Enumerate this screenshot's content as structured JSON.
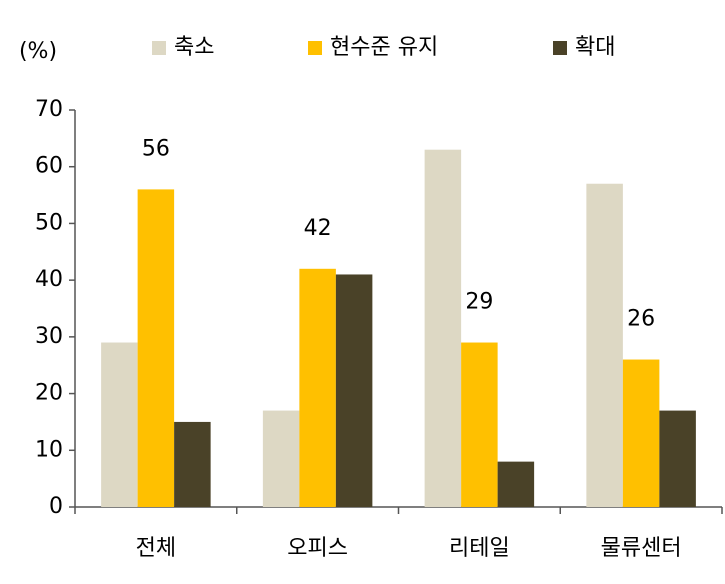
{
  "chart_data": {
    "type": "bar",
    "y_axis_label": "(%)",
    "categories": [
      "전체",
      "오피스",
      "리테일",
      "물류센터"
    ],
    "series": [
      {
        "name": "축소",
        "color": "#ddd8c4",
        "values": [
          29,
          17,
          63,
          57
        ]
      },
      {
        "name": "현수준 유지",
        "color": "#ffc000",
        "values": [
          56,
          42,
          29,
          26
        ],
        "show_values": true
      },
      {
        "name": "확대",
        "color": "#4a4228",
        "values": [
          15,
          41,
          8,
          17
        ]
      }
    ],
    "ylim": [
      0,
      70
    ],
    "yticks": [
      0,
      10,
      20,
      30,
      40,
      50,
      60,
      70
    ],
    "grid": false,
    "legend": "top"
  }
}
